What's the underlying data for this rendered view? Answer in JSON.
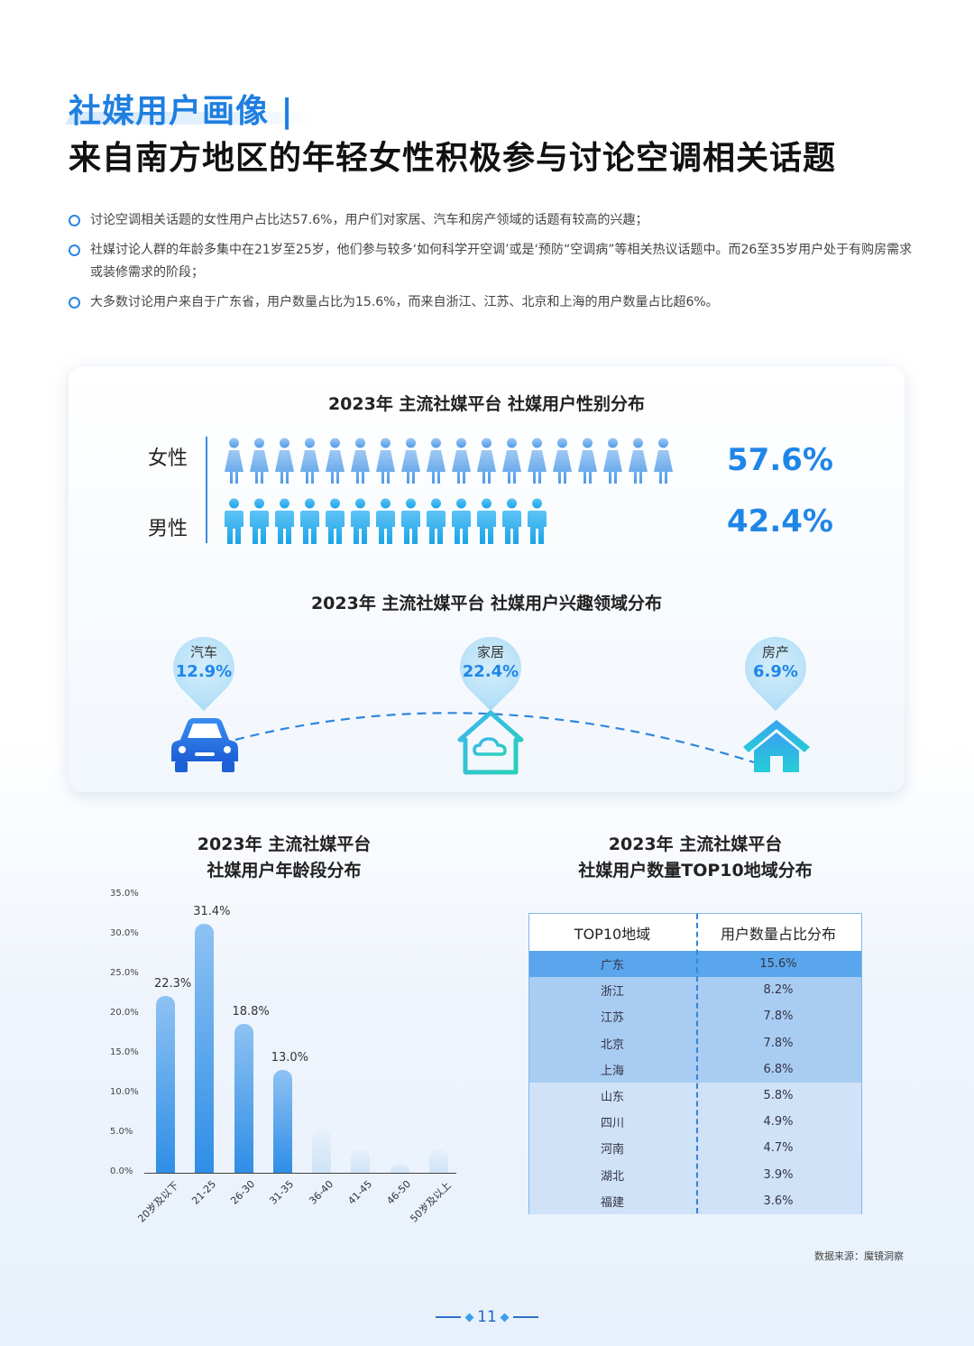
{
  "header": {
    "section_tag": "社媒用户画像 |",
    "headline": "来自南方地区的年轻女性积极参与讨论空调相关话题"
  },
  "bullets": [
    "讨论空调相关话题的女性用户占比达57.6%，用户们对家居、汽车和房产领域的话题有较高的兴趣；",
    "社媒讨论人群的年龄多集中在21岁至25岁，他们参与较多‘如何科学开空调’或是‘预防“空调病”等相关热议话题中。而26至35岁用户处于有购房需求或装修需求的阶段；",
    "大多数讨论用户来自于广东省，用户数量占比为15.6%，而来自浙江、江苏、北京和上海的用户数量占比超6%。"
  ],
  "chart_data": [
    {
      "type": "pictogram",
      "title": "2023年 主流社媒平台 社媒用户性别分布",
      "categories": [
        "女性",
        "男性"
      ],
      "values": [
        57.6,
        42.4
      ],
      "value_labels": [
        "57.6%",
        "42.4%"
      ],
      "icon_counts": [
        18,
        13
      ]
    },
    {
      "type": "scatter",
      "title": "2023年 主流社媒平台 社媒用户兴趣领域分布",
      "categories": [
        "汽车",
        "家居",
        "房产"
      ],
      "values": [
        12.9,
        22.4,
        6.9
      ],
      "value_labels": [
        "12.9%",
        "22.4%",
        "6.9%"
      ],
      "icons": [
        "car-icon",
        "smart-home-icon",
        "house-icon"
      ]
    },
    {
      "type": "bar",
      "title_lines": [
        "2023年 主流社媒平台",
        "社媒用户年龄段分布"
      ],
      "categories": [
        "20岁及以下",
        "21-25",
        "26-30",
        "31-35",
        "36-40",
        "41-45",
        "46-50",
        "50岁及以上"
      ],
      "values": [
        22.3,
        31.4,
        18.8,
        13.0,
        5.5,
        3.0,
        1.3,
        3.0
      ],
      "data_labels": [
        "22.3%",
        "31.4%",
        "18.8%",
        "13.0%",
        "",
        "",
        "",
        ""
      ],
      "y_ticks": [
        "0.0%",
        "5.0%",
        "10.0%",
        "15.0%",
        "20.0%",
        "25.0%",
        "30.0%",
        "35.0%"
      ],
      "ylim": [
        0,
        35
      ],
      "colors": {
        "main": "#2f8ee6",
        "faded": "#cfe3f7"
      }
    },
    {
      "type": "table",
      "title_lines": [
        "2023年 主流社媒平台",
        "社媒用户数量TOP10地域分布"
      ],
      "columns": [
        "TOP10地域",
        "用户数量占比分布"
      ],
      "rows": [
        [
          "广东",
          "15.6%"
        ],
        [
          "浙江",
          "8.2%"
        ],
        [
          "江苏",
          "7.8%"
        ],
        [
          "北京",
          "7.8%"
        ],
        [
          "上海",
          "6.8%"
        ],
        [
          "山东",
          "5.8%"
        ],
        [
          "四川",
          "4.9%"
        ],
        [
          "河南",
          "4.7%"
        ],
        [
          "湖北",
          "3.9%"
        ],
        [
          "福建",
          "3.6%"
        ]
      ],
      "row_colors": [
        "#5aa6ec",
        "#a9ccf2",
        "#a9ccf2",
        "#a9ccf2",
        "#a9ccf2",
        "#cfe2f7",
        "#cfe2f7",
        "#cfe2f7",
        "#cfe2f7",
        "#cfe2f7"
      ]
    }
  ],
  "footer": {
    "source": "数据来源：魔镜洞察",
    "page_number": "11"
  }
}
